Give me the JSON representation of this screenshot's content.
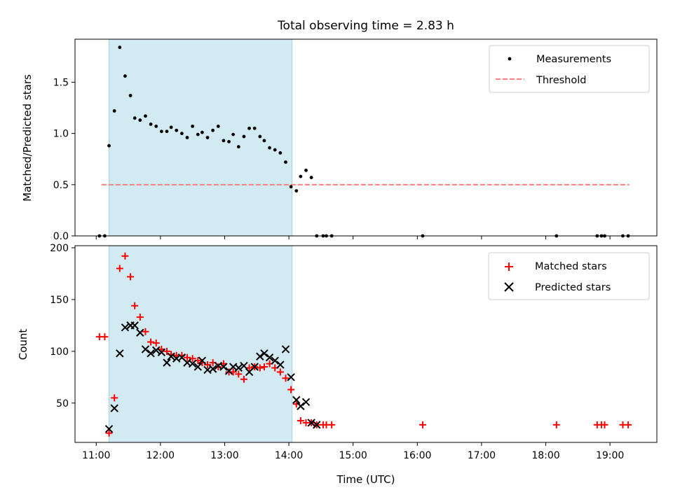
{
  "chart_data": [
    {
      "type": "scatter",
      "title": "Total observing time = 2.83 h",
      "xlabel": "",
      "ylabel": "Matched/Predicted stars",
      "ylim": [
        0,
        1.92
      ],
      "yticks": [
        0.0,
        0.5,
        1.0,
        1.5
      ],
      "ytick_labels": [
        "0.0",
        "0.5",
        "1.0",
        "1.5"
      ],
      "xlim_hours": [
        10.67,
        19.73
      ],
      "xtick_labels_shown": false,
      "shaded_interval": {
        "start": "11:12",
        "end": "14:03",
        "color": "#add8e6"
      },
      "legend_position": "upper right",
      "series": [
        {
          "name": "Measurements",
          "kind": "points",
          "color": "#000000",
          "x": [
            "11:03",
            "11:08",
            "11:12",
            "11:17",
            "11:22",
            "11:27",
            "11:32",
            "11:36",
            "11:41",
            "11:46",
            "11:51",
            "11:56",
            "12:01",
            "12:06",
            "12:10",
            "12:15",
            "12:20",
            "12:25",
            "12:30",
            "12:35",
            "12:39",
            "12:44",
            "12:49",
            "12:54",
            "12:59",
            "13:04",
            "13:08",
            "13:13",
            "13:18",
            "13:23",
            "13:28",
            "13:33",
            "13:37",
            "13:42",
            "13:47",
            "13:52",
            "13:57",
            "14:02",
            "14:07",
            "14:11",
            "14:16",
            "14:21",
            "14:26",
            "14:32",
            "14:35",
            "14:40",
            "16:05",
            "18:10",
            "18:48",
            "18:52",
            "18:55",
            "19:12",
            "19:17"
          ],
          "y": [
            0,
            0,
            0.88,
            1.22,
            1.84,
            1.56,
            1.37,
            1.15,
            1.13,
            1.17,
            1.09,
            1.07,
            1.02,
            1.02,
            1.06,
            1.03,
            1.0,
            0.96,
            1.07,
            0.99,
            1.01,
            0.96,
            1.03,
            1.07,
            0.93,
            0.92,
            0.99,
            0.87,
            0.97,
            1.05,
            1.05,
            0.97,
            0.93,
            0.86,
            0.84,
            0.81,
            0.72,
            0.48,
            0.44,
            0.58,
            0.64,
            0.57,
            0,
            0,
            0,
            0,
            0,
            0,
            0,
            0,
            0,
            0,
            0
          ]
        },
        {
          "name": "Threshold",
          "kind": "dashed-line",
          "color": "#ff7f7f",
          "x": [
            "11:05",
            "19:18"
          ],
          "y": [
            0.5,
            0.5
          ]
        }
      ]
    },
    {
      "type": "scatter",
      "title": "",
      "xlabel": "Time (UTC)",
      "ylabel": "Count",
      "ylim": [
        12,
        202
      ],
      "yticks": [
        50,
        100,
        150,
        200
      ],
      "ytick_labels": [
        "50",
        "100",
        "150",
        "200"
      ],
      "xlim_hours": [
        10.67,
        19.73
      ],
      "xticks_hours": [
        11,
        12,
        13,
        14,
        15,
        16,
        17,
        18,
        19
      ],
      "xtick_labels": [
        "11:00",
        "12:00",
        "13:00",
        "14:00",
        "15:00",
        "16:00",
        "17:00",
        "18:00",
        "19:00"
      ],
      "shaded_interval": {
        "start": "11:12",
        "end": "14:03",
        "color": "#add8e6"
      },
      "legend_position": "upper right",
      "series": [
        {
          "name": "Matched stars",
          "marker": "plus",
          "color": "#ff0000",
          "x": [
            "11:03",
            "11:08",
            "11:12",
            "11:17",
            "11:22",
            "11:27",
            "11:32",
            "11:36",
            "11:41",
            "11:46",
            "11:51",
            "11:56",
            "12:01",
            "12:06",
            "12:10",
            "12:15",
            "12:20",
            "12:25",
            "12:30",
            "12:35",
            "12:39",
            "12:44",
            "12:49",
            "12:54",
            "12:59",
            "13:04",
            "13:08",
            "13:13",
            "13:18",
            "13:23",
            "13:28",
            "13:33",
            "13:37",
            "13:42",
            "13:47",
            "13:52",
            "13:57",
            "14:02",
            "14:07",
            "14:11",
            "14:16",
            "14:21",
            "14:26",
            "14:32",
            "14:35",
            "14:40",
            "16:05",
            "18:10",
            "18:48",
            "18:52",
            "18:55",
            "19:12",
            "19:17"
          ],
          "y": [
            114,
            114,
            21,
            55,
            180,
            192,
            172,
            144,
            133,
            119,
            109,
            108,
            102,
            100,
            97,
            96,
            96,
            94,
            93,
            91,
            89,
            87,
            89,
            85,
            88,
            80,
            80,
            78,
            73,
            84,
            85,
            84,
            85,
            88,
            84,
            80,
            74,
            63,
            49,
            33,
            31,
            31,
            29,
            29,
            29,
            29,
            29,
            29,
            29,
            29,
            29,
            29,
            29
          ]
        },
        {
          "name": "Predicted stars",
          "marker": "x",
          "color": "#000000",
          "x": [
            "11:12",
            "11:17",
            "11:22",
            "11:27",
            "11:32",
            "11:36",
            "11:41",
            "11:46",
            "11:51",
            "11:56",
            "12:01",
            "12:06",
            "12:10",
            "12:15",
            "12:20",
            "12:25",
            "12:30",
            "12:35",
            "12:39",
            "12:44",
            "12:49",
            "12:54",
            "12:59",
            "13:04",
            "13:08",
            "13:13",
            "13:18",
            "13:23",
            "13:28",
            "13:33",
            "13:37",
            "13:42",
            "13:47",
            "13:52",
            "13:57",
            "14:02",
            "14:07",
            "14:11",
            "14:16",
            "14:21",
            "14:26"
          ],
          "y": [
            25,
            45,
            98,
            123,
            125,
            125,
            118,
            102,
            98,
            101,
            99,
            89,
            95,
            93,
            94,
            89,
            88,
            85,
            91,
            82,
            83,
            86,
            85,
            81,
            85,
            84,
            86,
            80,
            85,
            95,
            98,
            94,
            91,
            87,
            102,
            75,
            53,
            47,
            51,
            31,
            29
          ]
        }
      ]
    }
  ]
}
